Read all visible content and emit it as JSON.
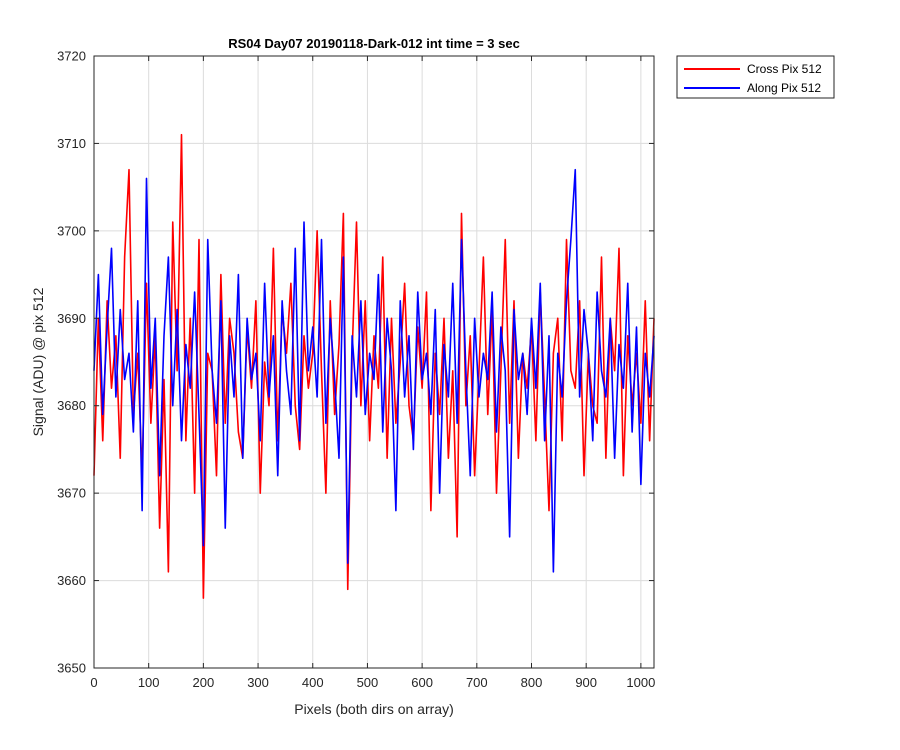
{
  "chart_data": {
    "type": "line",
    "title": "RS04 Day07 20190118-Dark-012 int time = 3 sec",
    "xlabel": "Pixels (both dirs on array)",
    "ylabel": "Signal (ADU) @ pix 512",
    "xlim": [
      0,
      1024
    ],
    "ylim": [
      3650,
      3720
    ],
    "xticks": [
      0,
      100,
      200,
      300,
      400,
      500,
      600,
      700,
      800,
      900,
      1000
    ],
    "yticks": [
      3650,
      3660,
      3670,
      3680,
      3690,
      3700,
      3710,
      3720
    ],
    "grid": true,
    "legend_position": "outside-top-right",
    "series": [
      {
        "name": "Cross Pix 512",
        "color": "#ff0000",
        "x": [
          0,
          8,
          16,
          24,
          32,
          40,
          48,
          56,
          64,
          72,
          80,
          88,
          96,
          104,
          112,
          120,
          128,
          136,
          144,
          152,
          160,
          168,
          176,
          184,
          192,
          200,
          208,
          216,
          224,
          232,
          240,
          248,
          256,
          264,
          272,
          280,
          288,
          296,
          304,
          312,
          320,
          328,
          336,
          344,
          352,
          360,
          368,
          376,
          384,
          392,
          400,
          408,
          416,
          424,
          432,
          440,
          448,
          456,
          464,
          472,
          480,
          488,
          496,
          504,
          512,
          520,
          528,
          536,
          544,
          552,
          560,
          568,
          576,
          584,
          592,
          600,
          608,
          616,
          624,
          632,
          640,
          648,
          656,
          664,
          672,
          680,
          688,
          696,
          704,
          712,
          720,
          728,
          736,
          744,
          752,
          760,
          768,
          776,
          784,
          792,
          800,
          808,
          816,
          824,
          832,
          840,
          848,
          856,
          864,
          872,
          880,
          888,
          896,
          904,
          912,
          920,
          928,
          936,
          944,
          952,
          960,
          968,
          976,
          984,
          992,
          1000,
          1008,
          1016,
          1024
        ],
        "values": [
          3672,
          3690,
          3676,
          3692,
          3682,
          3688,
          3674,
          3697,
          3707,
          3679,
          3686,
          3672,
          3694,
          3678,
          3688,
          3666,
          3683,
          3661,
          3701,
          3684,
          3711,
          3676,
          3690,
          3670,
          3699,
          3658,
          3686,
          3684,
          3672,
          3695,
          3678,
          3690,
          3686,
          3677,
          3674,
          3689,
          3682,
          3692,
          3670,
          3685,
          3680,
          3698,
          3676,
          3691,
          3686,
          3694,
          3680,
          3675,
          3688,
          3682,
          3686,
          3700,
          3684,
          3670,
          3692,
          3679,
          3687,
          3702,
          3659,
          3686,
          3701,
          3680,
          3692,
          3676,
          3688,
          3682,
          3697,
          3674,
          3690,
          3678,
          3685,
          3694,
          3680,
          3676,
          3689,
          3682,
          3693,
          3668,
          3686,
          3679,
          3690,
          3674,
          3684,
          3665,
          3702,
          3680,
          3688,
          3672,
          3684,
          3697,
          3679,
          3691,
          3670,
          3684,
          3699,
          3678,
          3692,
          3674,
          3686,
          3682,
          3689,
          3676,
          3693,
          3681,
          3668,
          3686,
          3690,
          3676,
          3699,
          3684,
          3682,
          3692,
          3672,
          3686,
          3680,
          3678,
          3697,
          3674,
          3690,
          3684,
          3698,
          3672,
          3688,
          3680,
          3686,
          3678,
          3692,
          3676,
          3690
        ]
      },
      {
        "name": "Along Pix 512",
        "color": "#0000ff",
        "x": [
          0,
          8,
          16,
          24,
          32,
          40,
          48,
          56,
          64,
          72,
          80,
          88,
          96,
          104,
          112,
          120,
          128,
          136,
          144,
          152,
          160,
          168,
          176,
          184,
          192,
          200,
          208,
          216,
          224,
          232,
          240,
          248,
          256,
          264,
          272,
          280,
          288,
          296,
          304,
          312,
          320,
          328,
          336,
          344,
          352,
          360,
          368,
          376,
          384,
          392,
          400,
          408,
          416,
          424,
          432,
          440,
          448,
          456,
          464,
          472,
          480,
          488,
          496,
          504,
          512,
          520,
          528,
          536,
          544,
          552,
          560,
          568,
          576,
          584,
          592,
          600,
          608,
          616,
          624,
          632,
          640,
          648,
          656,
          664,
          672,
          680,
          688,
          696,
          704,
          712,
          720,
          728,
          736,
          744,
          752,
          760,
          768,
          776,
          784,
          792,
          800,
          808,
          816,
          824,
          832,
          840,
          848,
          856,
          864,
          872,
          880,
          888,
          896,
          904,
          912,
          920,
          928,
          936,
          944,
          952,
          960,
          968,
          976,
          984,
          992,
          1000,
          1008,
          1016,
          1024
        ],
        "values": [
          3684,
          3695,
          3679,
          3689,
          3698,
          3681,
          3691,
          3683,
          3686,
          3677,
          3692,
          3668,
          3706,
          3682,
          3690,
          3672,
          3688,
          3697,
          3680,
          3691,
          3676,
          3687,
          3682,
          3693,
          3679,
          3664,
          3699,
          3684,
          3678,
          3692,
          3666,
          3688,
          3681,
          3695,
          3674,
          3690,
          3683,
          3686,
          3676,
          3694,
          3681,
          3688,
          3672,
          3692,
          3684,
          3679,
          3698,
          3676,
          3701,
          3684,
          3689,
          3681,
          3699,
          3678,
          3690,
          3683,
          3674,
          3697,
          3662,
          3688,
          3681,
          3692,
          3679,
          3686,
          3683,
          3695,
          3677,
          3690,
          3684,
          3668,
          3692,
          3681,
          3688,
          3675,
          3693,
          3683,
          3686,
          3679,
          3691,
          3670,
          3687,
          3681,
          3694,
          3678,
          3699,
          3684,
          3672,
          3690,
          3681,
          3686,
          3683,
          3693,
          3677,
          3689,
          3684,
          3665,
          3691,
          3683,
          3686,
          3679,
          3690,
          3682,
          3694,
          3676,
          3688,
          3661,
          3686,
          3681,
          3692,
          3699,
          3707,
          3681,
          3691,
          3686,
          3676,
          3693,
          3684,
          3681,
          3690,
          3674,
          3687,
          3682,
          3694,
          3677,
          3689,
          3671,
          3686,
          3681,
          3688
        ]
      }
    ]
  }
}
